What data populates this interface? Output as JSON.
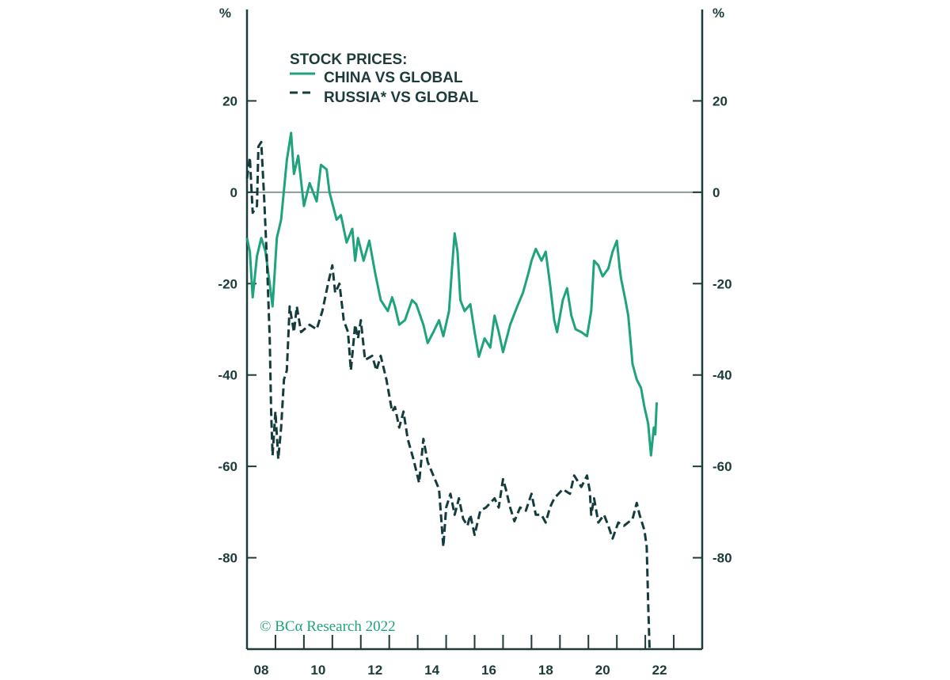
{
  "chart_data": {
    "type": "line",
    "title": "",
    "ylabel_left": "%",
    "ylabel_right": "%",
    "xlim": [
      2008,
      2024
    ],
    "ylim": [
      -100,
      40
    ],
    "yticks": [
      20,
      0,
      -20,
      -40,
      -60,
      -80
    ],
    "ytick_labels": [
      "20",
      "0",
      "-20",
      "-40",
      "-60",
      "-80"
    ],
    "xtick_label_years": [
      2008,
      2010,
      2012,
      2014,
      2016,
      2018,
      2020,
      2022
    ],
    "xtick_labels": [
      "08",
      "10",
      "12",
      "14",
      "16",
      "18",
      "20",
      "22"
    ],
    "grid": false,
    "zero_line": true,
    "legend": {
      "placement": "top-left",
      "title": "STOCK PRICES:",
      "entries": [
        "CHINA VS GLOBAL",
        "RUSSIA* VS GLOBAL"
      ]
    },
    "credit": "© BCα Research 2022",
    "colors": {
      "china": "#1fa37e",
      "russia": "#143c3c",
      "axis": "#1d3b3b",
      "zero_line": "#8c9999"
    },
    "series": [
      {
        "name": "CHINA VS GLOBAL",
        "style": "solid",
        "points": [
          [
            2008.0,
            -10
          ],
          [
            2008.1,
            -13
          ],
          [
            2008.2,
            -23
          ],
          [
            2008.35,
            -14
          ],
          [
            2008.5,
            -10
          ],
          [
            2008.65,
            -13
          ],
          [
            2008.8,
            -20
          ],
          [
            2008.9,
            -25
          ],
          [
            2009.05,
            -10
          ],
          [
            2009.2,
            -6
          ],
          [
            2009.4,
            7
          ],
          [
            2009.55,
            13
          ],
          [
            2009.65,
            4
          ],
          [
            2009.8,
            8
          ],
          [
            2010.0,
            -3
          ],
          [
            2010.2,
            2
          ],
          [
            2010.45,
            -2
          ],
          [
            2010.6,
            6
          ],
          [
            2010.8,
            5
          ],
          [
            2010.9,
            0
          ],
          [
            2011.15,
            -6
          ],
          [
            2011.3,
            -5
          ],
          [
            2011.5,
            -11
          ],
          [
            2011.7,
            -8
          ],
          [
            2011.8,
            -15
          ],
          [
            2011.9,
            -10
          ],
          [
            2012.1,
            -15
          ],
          [
            2012.3,
            -10.6
          ],
          [
            2012.5,
            -17.5
          ],
          [
            2012.7,
            -23.6
          ],
          [
            2012.95,
            -26
          ],
          [
            2013.1,
            -23
          ],
          [
            2013.2,
            -25
          ],
          [
            2013.35,
            -29
          ],
          [
            2013.55,
            -28
          ],
          [
            2013.8,
            -23.6
          ],
          [
            2013.95,
            -24.5
          ],
          [
            2014.2,
            -29
          ],
          [
            2014.35,
            -33
          ],
          [
            2014.55,
            -30.6
          ],
          [
            2014.75,
            -28
          ],
          [
            2014.9,
            -31.5
          ],
          [
            2015.1,
            -26
          ],
          [
            2015.2,
            -17
          ],
          [
            2015.3,
            -9
          ],
          [
            2015.4,
            -13
          ],
          [
            2015.5,
            -23.6
          ],
          [
            2015.65,
            -26
          ],
          [
            2015.85,
            -24.5
          ],
          [
            2016.0,
            -30.6
          ],
          [
            2016.15,
            -36
          ],
          [
            2016.35,
            -32
          ],
          [
            2016.55,
            -34
          ],
          [
            2016.7,
            -27
          ],
          [
            2016.85,
            -30.6
          ],
          [
            2017.0,
            -35
          ],
          [
            2017.25,
            -29
          ],
          [
            2017.5,
            -25
          ],
          [
            2017.7,
            -22
          ],
          [
            2017.9,
            -17.5
          ],
          [
            2018.0,
            -15
          ],
          [
            2018.15,
            -12.4
          ],
          [
            2018.35,
            -15
          ],
          [
            2018.5,
            -13
          ],
          [
            2018.65,
            -20
          ],
          [
            2018.8,
            -28
          ],
          [
            2018.9,
            -30.6
          ],
          [
            2019.1,
            -23.6
          ],
          [
            2019.25,
            -21
          ],
          [
            2019.4,
            -27
          ],
          [
            2019.55,
            -30
          ],
          [
            2019.75,
            -30.6
          ],
          [
            2019.95,
            -31.5
          ],
          [
            2020.1,
            -26
          ],
          [
            2020.2,
            -15
          ],
          [
            2020.35,
            -16
          ],
          [
            2020.5,
            -18.4
          ],
          [
            2020.7,
            -16.7
          ],
          [
            2020.85,
            -13
          ],
          [
            2021.0,
            -10.6
          ],
          [
            2021.1,
            -16.7
          ],
          [
            2021.15,
            -19
          ],
          [
            2021.3,
            -23.6
          ],
          [
            2021.4,
            -27
          ],
          [
            2021.55,
            -37.6
          ],
          [
            2021.7,
            -41
          ],
          [
            2021.85,
            -42.8
          ],
          [
            2021.97,
            -47
          ],
          [
            2022.1,
            -50.6
          ],
          [
            2022.2,
            -57.6
          ],
          [
            2022.3,
            -51.5
          ],
          [
            2022.35,
            -53
          ],
          [
            2022.4,
            -46
          ]
        ]
      },
      {
        "name": "RUSSIA* VS GLOBAL",
        "style": "dashed",
        "points": [
          [
            2008.0,
            3
          ],
          [
            2008.1,
            7.6
          ],
          [
            2008.2,
            -4.5
          ],
          [
            2008.35,
            -3
          ],
          [
            2008.4,
            10
          ],
          [
            2008.5,
            11
          ],
          [
            2008.6,
            -1
          ],
          [
            2008.7,
            -15
          ],
          [
            2008.8,
            -32
          ],
          [
            2008.85,
            -48
          ],
          [
            2008.9,
            -57.6
          ],
          [
            2009.0,
            -48
          ],
          [
            2009.1,
            -58.4
          ],
          [
            2009.2,
            -51.5
          ],
          [
            2009.3,
            -41
          ],
          [
            2009.4,
            -39
          ],
          [
            2009.5,
            -25
          ],
          [
            2009.65,
            -30.6
          ],
          [
            2009.75,
            -25
          ],
          [
            2009.9,
            -30.6
          ],
          [
            2010.2,
            -29
          ],
          [
            2010.45,
            -30
          ],
          [
            2010.65,
            -26
          ],
          [
            2010.85,
            -20
          ],
          [
            2011.0,
            -16
          ],
          [
            2011.1,
            -22
          ],
          [
            2011.25,
            -20
          ],
          [
            2011.4,
            -28
          ],
          [
            2011.55,
            -30.6
          ],
          [
            2011.65,
            -39
          ],
          [
            2011.8,
            -29
          ],
          [
            2011.9,
            -32
          ],
          [
            2012.0,
            -28
          ],
          [
            2012.15,
            -36.7
          ],
          [
            2012.4,
            -35.8
          ],
          [
            2012.55,
            -39
          ],
          [
            2012.7,
            -35.8
          ],
          [
            2012.9,
            -41
          ],
          [
            2013.1,
            -48
          ],
          [
            2013.2,
            -47
          ],
          [
            2013.35,
            -51.5
          ],
          [
            2013.5,
            -48
          ],
          [
            2013.65,
            -54
          ],
          [
            2013.85,
            -58.4
          ],
          [
            2014.05,
            -63.6
          ],
          [
            2014.2,
            -54
          ],
          [
            2014.35,
            -59
          ],
          [
            2014.55,
            -62
          ],
          [
            2014.75,
            -65
          ],
          [
            2014.9,
            -77.6
          ],
          [
            2015.0,
            -69
          ],
          [
            2015.15,
            -66
          ],
          [
            2015.3,
            -70.6
          ],
          [
            2015.45,
            -67
          ],
          [
            2015.6,
            -71.5
          ],
          [
            2015.75,
            -73
          ],
          [
            2015.85,
            -70.6
          ],
          [
            2016.0,
            -75
          ],
          [
            2016.2,
            -69.7
          ],
          [
            2016.4,
            -69
          ],
          [
            2016.7,
            -67
          ],
          [
            2016.85,
            -69
          ],
          [
            2017.0,
            -62.8
          ],
          [
            2017.1,
            -65
          ],
          [
            2017.25,
            -69
          ],
          [
            2017.4,
            -72
          ],
          [
            2017.6,
            -69
          ],
          [
            2017.8,
            -69.7
          ],
          [
            2018.0,
            -66
          ],
          [
            2018.15,
            -70.6
          ],
          [
            2018.35,
            -70.6
          ],
          [
            2018.5,
            -72.3
          ],
          [
            2018.65,
            -69
          ],
          [
            2018.8,
            -67
          ],
          [
            2019.1,
            -65
          ],
          [
            2019.35,
            -66
          ],
          [
            2019.5,
            -62
          ],
          [
            2019.75,
            -64.5
          ],
          [
            2019.95,
            -62
          ],
          [
            2020.05,
            -65.4
          ],
          [
            2020.1,
            -70.6
          ],
          [
            2020.2,
            -67
          ],
          [
            2020.35,
            -72.3
          ],
          [
            2020.55,
            -70.6
          ],
          [
            2020.7,
            -73
          ],
          [
            2020.85,
            -75.8
          ],
          [
            2021.05,
            -72.3
          ],
          [
            2021.25,
            -73
          ],
          [
            2021.55,
            -71.5
          ],
          [
            2021.7,
            -68
          ],
          [
            2021.8,
            -70.6
          ],
          [
            2021.97,
            -74
          ],
          [
            2022.05,
            -77.6
          ],
          [
            2022.1,
            -89.7
          ],
          [
            2022.15,
            -100
          ]
        ]
      }
    ]
  }
}
